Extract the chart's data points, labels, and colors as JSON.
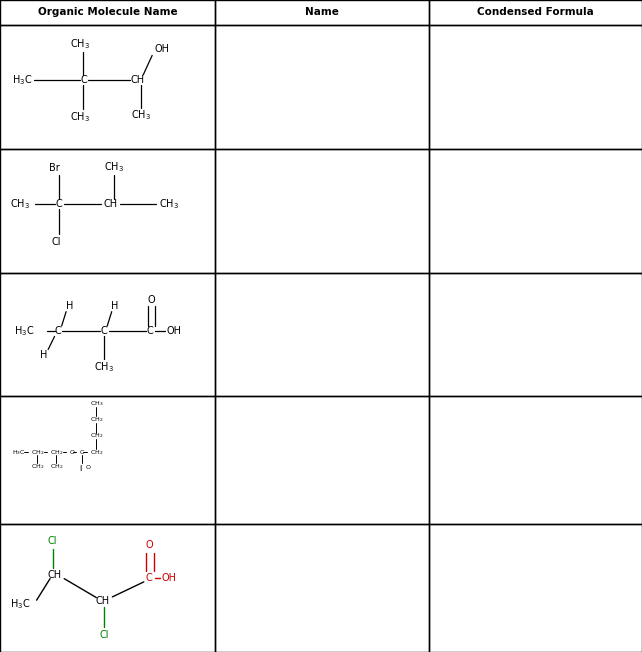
{
  "title_row": [
    "Organic Molecule Name",
    "Name",
    "Condensed Formula"
  ],
  "col_bounds": [
    0.0,
    0.335,
    0.668,
    1.0
  ],
  "row_bounds": [
    1.0,
    0.962,
    0.772,
    0.582,
    0.392,
    0.197,
    0.0
  ],
  "header_bg": "#ffffff",
  "cell_bg": "#ffffff",
  "border_color": "#000000",
  "text_color": "#000000",
  "green_color": "#008000",
  "red_color": "#cc0000",
  "fs_main": 7.0,
  "fs_sub": 5.2,
  "fs_header": 7.5,
  "fs_small": 4.5,
  "fs_small_sub": 3.5
}
